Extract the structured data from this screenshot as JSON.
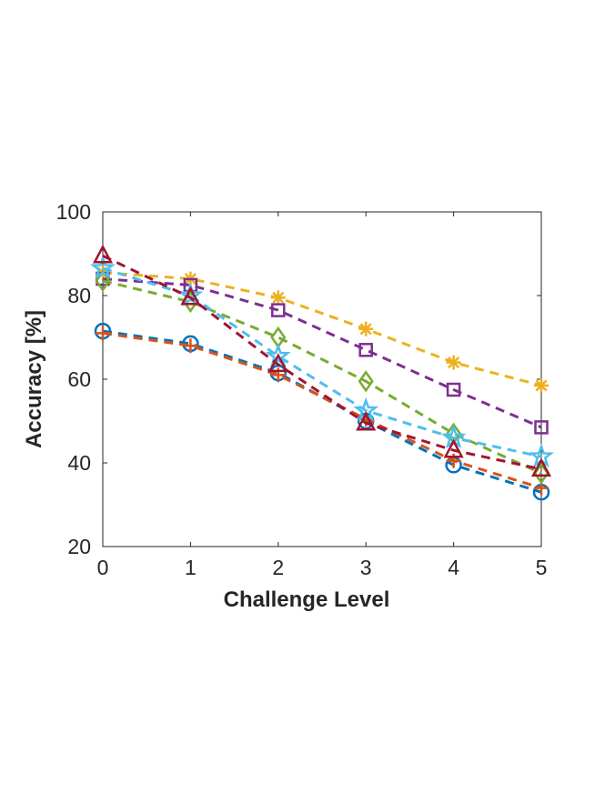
{
  "chart_data": {
    "type": "line",
    "xlabel": "Challenge Level",
    "ylabel": "Accuracy [%]",
    "x": [
      0,
      1,
      2,
      3,
      4,
      5
    ],
    "xticks": [
      "0",
      "1",
      "2",
      "3",
      "4",
      "5"
    ],
    "yticks": [
      "20",
      "40",
      "60",
      "80",
      "100"
    ],
    "xlim": [
      0,
      5
    ],
    "ylim": [
      20,
      100
    ],
    "grid": false,
    "series": [
      {
        "marker": "circle",
        "color": "#0072BD",
        "values": [
          71.5,
          68.5,
          61.5,
          50.0,
          39.5,
          33.0
        ]
      },
      {
        "marker": "plus",
        "color": "#D95319",
        "values": [
          71.0,
          68.0,
          61.0,
          50.5,
          40.5,
          34.0
        ]
      },
      {
        "marker": "asterisk",
        "color": "#EDB120",
        "values": [
          85.5,
          84.0,
          79.5,
          72.0,
          64.0,
          58.5
        ]
      },
      {
        "marker": "square",
        "color": "#7E2F8E",
        "values": [
          84.0,
          82.5,
          76.5,
          67.0,
          57.5,
          48.5
        ]
      },
      {
        "marker": "diamond",
        "color": "#77AC30",
        "values": [
          83.5,
          78.5,
          70.0,
          59.5,
          47.0,
          37.5
        ]
      },
      {
        "marker": "pentagram",
        "color": "#4DBEEE",
        "values": [
          86.5,
          80.0,
          65.5,
          52.5,
          46.0,
          41.5
        ]
      },
      {
        "marker": "triangle",
        "color": "#A2142F",
        "values": [
          89.5,
          79.5,
          63.5,
          49.5,
          43.0,
          38.5
        ]
      }
    ]
  }
}
